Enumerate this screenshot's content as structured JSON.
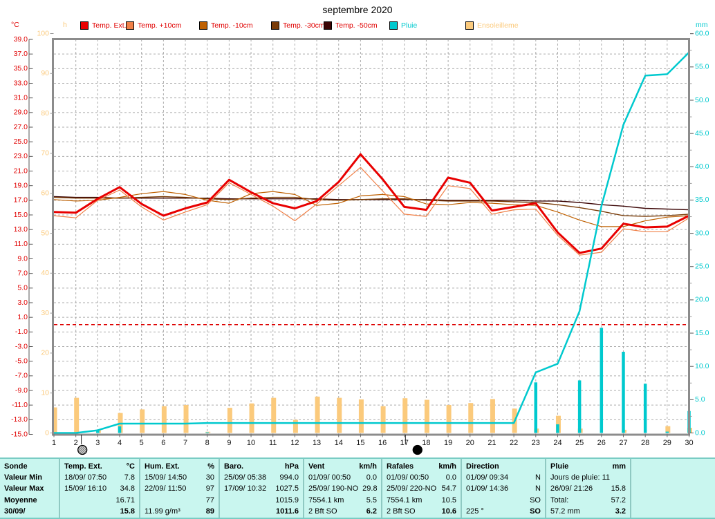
{
  "title": "septembre 2020",
  "axes": {
    "temp": {
      "title": "°C",
      "color": "#e00000",
      "min": -15,
      "max": 39,
      "step": 2,
      "ticks": [
        "39.0",
        "37.0",
        "35.0",
        "33.0",
        "31.0",
        "29.0",
        "27.0",
        "25.0",
        "23.0",
        "21.0",
        "19.0",
        "17.0",
        "15.0",
        "13.0",
        "11.0",
        "9.0",
        "7.0",
        "5.0",
        "3.0",
        "1.0",
        "-1.0",
        "-3.0",
        "-5.0",
        "-7.0",
        "-9.0",
        "-11.0",
        "-13.0",
        "-15.0"
      ]
    },
    "sun": {
      "title": "h",
      "color": "#fbca7c",
      "min": 0,
      "max": 100,
      "step": 10,
      "ticks": [
        "100",
        "90",
        "80",
        "70",
        "60",
        "50",
        "40",
        "30",
        "20",
        "10",
        "0"
      ]
    },
    "rain": {
      "title": "mm",
      "color": "#00c9ce",
      "min": 0,
      "max": 60,
      "step": 5,
      "ticks": [
        "60.0",
        "55.0",
        "50.0",
        "45.0",
        "40.0",
        "35.0",
        "30.0",
        "25.0",
        "20.0",
        "15.0",
        "10.0",
        "5.0",
        "0.0"
      ]
    }
  },
  "legend": {
    "items": [
      {
        "key": "temp-ext",
        "label": "Temp. Ext.",
        "color": "#e80000",
        "text_color": "#e00000",
        "x": 116
      },
      {
        "key": "temp-p10",
        "label": "Temp. +10cm",
        "color": "#f08048",
        "text_color": "#e00000",
        "x": 182
      },
      {
        "key": "temp-m10",
        "label": "Temp. -10cm",
        "color": "#bf6000",
        "text_color": "#e00000",
        "x": 288
      },
      {
        "key": "temp-m30",
        "label": "Temp. -30cm",
        "color": "#7a3c08",
        "text_color": "#e00000",
        "x": 392
      },
      {
        "key": "temp-m50",
        "label": "Temp. -50cm",
        "color": "#3c0606",
        "text_color": "#e00000",
        "x": 468
      },
      {
        "key": "pluie",
        "label": "Pluie",
        "color": "#00c9ce",
        "text_color": "#00c9ce",
        "x": 563
      },
      {
        "key": "ensoleillement",
        "label": "Ensoleilleme",
        "color": "#fbca7c",
        "text_color": "#fbca7c",
        "x": 673
      }
    ]
  },
  "chart_data": {
    "type": "line+bar",
    "title": "septembre 2020",
    "x_days": [
      1,
      2,
      3,
      4,
      5,
      6,
      7,
      8,
      9,
      10,
      11,
      12,
      13,
      14,
      15,
      16,
      17,
      18,
      19,
      20,
      21,
      22,
      23,
      24,
      25,
      26,
      27,
      28,
      29,
      30
    ],
    "xlabel": "",
    "ylabel_left": "°C / h",
    "ylabel_right": "mm",
    "ylim_temp": [
      -15,
      39
    ],
    "ylim_sun_h": [
      0,
      100
    ],
    "ylim_rain_mm": [
      0,
      60
    ],
    "grid": true,
    "legend_position": "top",
    "series": [
      {
        "name": "Temp. Ext.",
        "type": "line",
        "unit": "°C",
        "color": "#e80000",
        "width": 3,
        "values": [
          15.4,
          15.3,
          17.2,
          18.8,
          16.5,
          14.9,
          15.9,
          16.7,
          19.8,
          18.1,
          16.6,
          15.9,
          16.9,
          19.5,
          23.3,
          19.9,
          16.1,
          15.7,
          20.1,
          19.4,
          15.6,
          16.1,
          16.6,
          12.6,
          9.8,
          10.4,
          13.8,
          13.3,
          13.4,
          14.9
        ]
      },
      {
        "name": "Temp. +10cm",
        "type": "line",
        "unit": "°C",
        "color": "#f08048",
        "width": 1.2,
        "values": [
          14.9,
          14.6,
          17.0,
          18.4,
          16.1,
          14.3,
          15.4,
          16.4,
          19.4,
          17.8,
          16.2,
          14.2,
          16.5,
          19.0,
          21.5,
          18.3,
          15.1,
          14.8,
          19.0,
          18.6,
          15.1,
          15.7,
          15.8,
          12.2,
          9.5,
          9.9,
          13.1,
          12.7,
          12.7,
          14.6
        ]
      },
      {
        "name": "Temp. -10cm",
        "type": "line",
        "unit": "°C",
        "color": "#bf6000",
        "width": 1.2,
        "values": [
          17.1,
          16.9,
          17.0,
          17.4,
          17.9,
          18.2,
          17.8,
          17.0,
          16.6,
          17.9,
          18.2,
          17.8,
          16.3,
          16.6,
          17.6,
          17.8,
          17.5,
          16.5,
          16.4,
          16.7,
          16.6,
          16.4,
          16.3,
          15.4,
          14.3,
          13.4,
          13.4,
          14.2,
          14.7,
          14.9
        ]
      },
      {
        "name": "Temp. -30cm",
        "type": "line",
        "unit": "°C",
        "color": "#7a3c08",
        "width": 1.4,
        "values": [
          17.4,
          17.3,
          17.3,
          17.3,
          17.4,
          17.5,
          17.4,
          17.2,
          17.1,
          17.3,
          17.4,
          17.4,
          17.1,
          17.0,
          17.1,
          17.2,
          17.2,
          17.0,
          16.9,
          16.9,
          16.9,
          16.8,
          16.7,
          16.4,
          16.0,
          15.5,
          14.9,
          14.8,
          14.9,
          15.1
        ]
      },
      {
        "name": "Temp. -50cm",
        "type": "line",
        "unit": "°C",
        "color": "#3c0606",
        "width": 1.4,
        "values": [
          17.5,
          17.4,
          17.4,
          17.3,
          17.3,
          17.3,
          17.3,
          17.3,
          17.2,
          17.2,
          17.2,
          17.2,
          17.2,
          17.1,
          17.1,
          17.1,
          17.1,
          17.1,
          17.0,
          17.0,
          17.0,
          17.0,
          16.9,
          16.9,
          16.7,
          16.4,
          16.2,
          15.9,
          15.8,
          15.7
        ]
      },
      {
        "name": "Ensoleillement",
        "type": "bar",
        "unit": "h",
        "color": "#fbca7c",
        "values": [
          6.4,
          8.8,
          0.7,
          5.0,
          5.9,
          6.7,
          7.0,
          0.3,
          6.3,
          7.4,
          8.8,
          3.3,
          9.1,
          8.8,
          8.4,
          6.7,
          8.7,
          8.3,
          7.0,
          7.5,
          8.5,
          6.1,
          1.1,
          4.3,
          1.1,
          0,
          0.8,
          0,
          1.7,
          1.3
        ]
      },
      {
        "name": "Pluie",
        "type": "bar",
        "unit": "mm",
        "color": "#00c9ce",
        "values": [
          0,
          0,
          0.4,
          1.0,
          0,
          0,
          0,
          0.1,
          0,
          0,
          0,
          0,
          0,
          0,
          0,
          0,
          0,
          0,
          0,
          0,
          0,
          0,
          7.6,
          1.3,
          7.9,
          15.8,
          12.2,
          7.4,
          0.2,
          3.3
        ]
      },
      {
        "name": "Pluie cumul",
        "type": "line",
        "unit": "mm",
        "color": "#00c9ce",
        "width": 2.5,
        "derived": "cumsum of Pluie",
        "total": 57.2
      }
    ],
    "zero_line": {
      "unit": "°C",
      "value": 0,
      "color": "#dd0000",
      "style": "dashed"
    },
    "moon_phases": [
      {
        "phase": "full",
        "x_day": 2.3,
        "tick_day": 2.25
      },
      {
        "phase": "new",
        "x_day": 17.6,
        "tick_day": 17.05
      }
    ]
  },
  "table": {
    "row_labels": [
      "Sonde",
      "Valeur Min",
      "Valeur Max",
      "Moyenne",
      "30/09/"
    ],
    "columns": [
      {
        "header": "Temp. Ext.",
        "unit": "°C",
        "rows": [
          [
            "18/09/ 07:50",
            "7.8"
          ],
          [
            "15/09/ 16:10",
            "34.8"
          ],
          [
            "",
            "16.71"
          ],
          [
            "",
            "15.8"
          ]
        ]
      },
      {
        "header": "Hum. Ext.",
        "unit": "%",
        "rows": [
          [
            "15/09/ 14:50",
            "30"
          ],
          [
            "22/09/ 11:50",
            "97"
          ],
          [
            "",
            "77"
          ],
          [
            "11.99 g/m³",
            "89"
          ]
        ]
      },
      {
        "header": "Baro.",
        "unit": "hPa",
        "rows": [
          [
            "25/09/ 05:38",
            "994.0"
          ],
          [
            "17/09/ 10:32",
            "1027.5"
          ],
          [
            "",
            "1015.9"
          ],
          [
            "",
            "1011.6"
          ]
        ]
      },
      {
        "header": "Vent",
        "unit": "km/h",
        "rows": [
          [
            "01/09/ 00:50",
            "0.0"
          ],
          [
            "25/09/ 190-NO",
            "29.8"
          ],
          [
            "7554.1 km",
            "5.5"
          ],
          [
            "2 Bft SO",
            "6.2"
          ]
        ]
      },
      {
        "header": "Rafales",
        "unit": "km/h",
        "rows": [
          [
            "01/09/ 00:50",
            "0.0"
          ],
          [
            "25/09/ 220-NO",
            "54.7"
          ],
          [
            "7554.1 km",
            "10.5"
          ],
          [
            "2 Bft SO",
            "10.6"
          ]
        ]
      },
      {
        "header": "Direction",
        "unit": "",
        "rows": [
          [
            "01/09/ 09:34",
            "N"
          ],
          [
            "01/09/ 14:36",
            "N"
          ],
          [
            "",
            "SO"
          ],
          [
            "225 °",
            "SO"
          ]
        ]
      },
      {
        "header": "Pluie",
        "unit": "mm",
        "rows": [
          [
            "Jours de pluie: 11",
            ""
          ],
          [
            "26/09/ 21:26",
            "15.8"
          ],
          [
            "Total:",
            "57.2"
          ],
          [
            "57.2 mm",
            "3.2"
          ]
        ]
      }
    ]
  }
}
